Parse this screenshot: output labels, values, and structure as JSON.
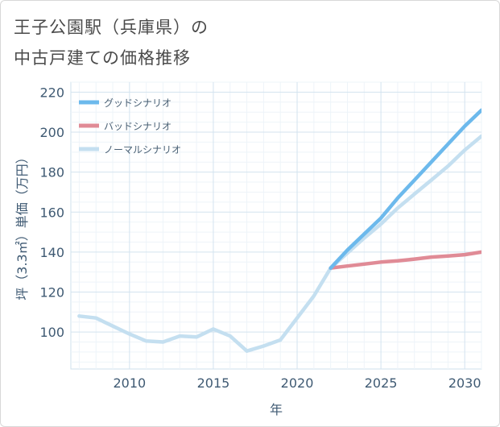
{
  "title": {
    "line1": "王子公園駅（兵庫県）の",
    "line2": "中古戸建ての価格推移"
  },
  "chart_data": {
    "type": "line",
    "xlabel": "年",
    "ylabel": "坪（3.3㎡）単価（万円）",
    "xlim": [
      2006.5,
      2031
    ],
    "ylim": [
      81.5,
      225
    ],
    "x_ticks": [
      2010,
      2015,
      2020,
      2025,
      2030
    ],
    "x_tick_labels": [
      "2010",
      "2015",
      "2020",
      "2025",
      "2030"
    ],
    "y_ticks": [
      100,
      120,
      140,
      160,
      180,
      200,
      220
    ],
    "y_tick_labels": [
      "100",
      "120",
      "140",
      "160",
      "180",
      "200",
      "220"
    ],
    "grid": true,
    "legend_position": "top-left",
    "series": [
      {
        "name": "グッドシナリオ",
        "color": "#6cb9ec",
        "x": [
          2022,
          2023,
          2024,
          2025,
          2026,
          2027,
          2028,
          2029,
          2030,
          2031
        ],
        "y": [
          132,
          141,
          149,
          157,
          167,
          176,
          185,
          194,
          203,
          211
        ]
      },
      {
        "name": "バッドシナリオ",
        "color": "#e08b96",
        "x": [
          2022,
          2023,
          2024,
          2025,
          2026,
          2027,
          2028,
          2029,
          2030,
          2031
        ],
        "y": [
          132,
          133,
          134,
          135,
          135.6,
          136.5,
          137.5,
          138,
          138.7,
          140
        ]
      },
      {
        "name": "ノーマルシナリオ",
        "color": "#c4dff0",
        "x": [
          2007,
          2008,
          2009,
          2010,
          2011,
          2012,
          2013,
          2014,
          2015,
          2016,
          2017,
          2018,
          2019,
          2020,
          2021,
          2022,
          2023,
          2024,
          2025,
          2026,
          2027,
          2028,
          2029,
          2030,
          2031
        ],
        "y": [
          108,
          107,
          103,
          99,
          95.5,
          95,
          98,
          97.5,
          101.5,
          98,
          90.5,
          93,
          96,
          107,
          118,
          132,
          139.5,
          147,
          154,
          162,
          169,
          176,
          183,
          191,
          198
        ]
      }
    ]
  }
}
